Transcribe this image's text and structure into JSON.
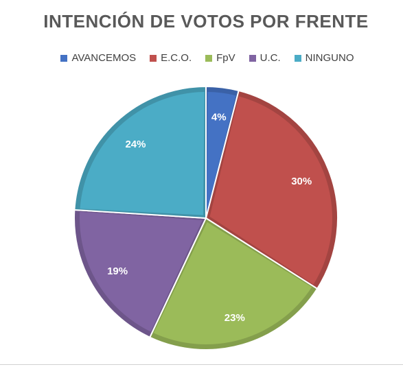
{
  "chart_data": {
    "type": "pie",
    "title": "INTENCIÓN DE VOTOS POR FRENTE",
    "legend_position": "top",
    "categories": [
      "AVANCEMOS",
      "E.C.O.",
      "FpV",
      "U.C.",
      "NINGUNO"
    ],
    "values": [
      4,
      30,
      23,
      19,
      24
    ],
    "labels": [
      "4%",
      "30%",
      "23%",
      "19%",
      "24%"
    ],
    "colors": [
      "#4472C4",
      "#C0504D",
      "#9BBB59",
      "#8064A2",
      "#4BACC6"
    ]
  }
}
